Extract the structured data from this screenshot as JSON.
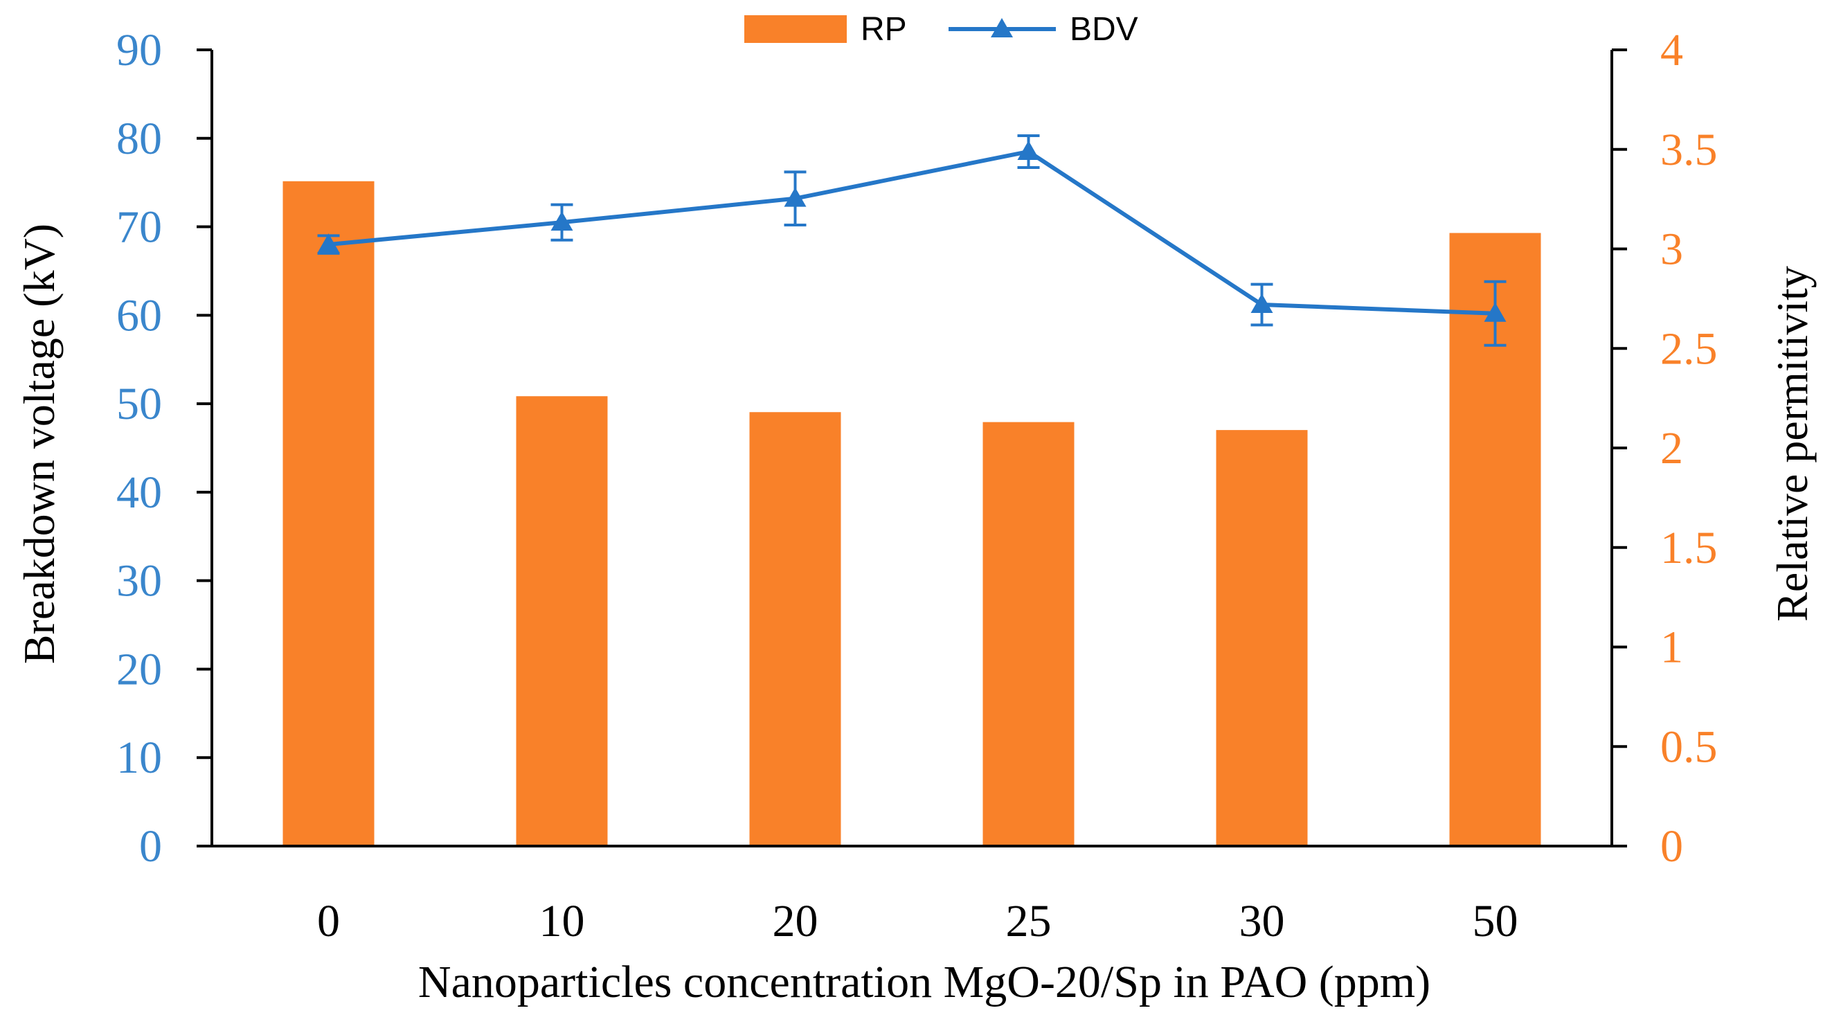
{
  "colors": {
    "bar": "#F98129",
    "line": "#2577C8",
    "axis": "#000000",
    "left_tick_color": "#3A86CC",
    "right_tick_color": "#F98129"
  },
  "chart_data": {
    "type": "bar",
    "categories": [
      "0",
      "10",
      "20",
      "25",
      "30",
      "50"
    ],
    "xlabel": "Nanoparticles concentration MgO-20/Sp in PAO (ppm)",
    "ylabel": "Breakdown voltage (kV)",
    "y2label": "Relative permitivity",
    "ylim": [
      0,
      90
    ],
    "yticks": [
      "0",
      "10",
      "20",
      "30",
      "40",
      "50",
      "60",
      "70",
      "80",
      "90"
    ],
    "y2lim": [
      0,
      4
    ],
    "y2ticks": [
      "0",
      "0.5",
      "1",
      "1.5",
      "2",
      "2.5",
      "3",
      "3.5",
      "4"
    ],
    "grid": false,
    "legend_position": "top-center",
    "series": [
      {
        "name": "RP",
        "kind": "bar",
        "axis": "right",
        "values": [
          3.34,
          2.26,
          2.18,
          2.13,
          2.09,
          3.08
        ]
      },
      {
        "name": "BDV",
        "kind": "line",
        "marker": "triangle",
        "axis": "left",
        "values": [
          68,
          70.5,
          73.2,
          78.5,
          61.2,
          60.2
        ],
        "error": [
          1.0,
          2.0,
          3.0,
          1.8,
          2.3,
          3.6
        ]
      }
    ]
  }
}
